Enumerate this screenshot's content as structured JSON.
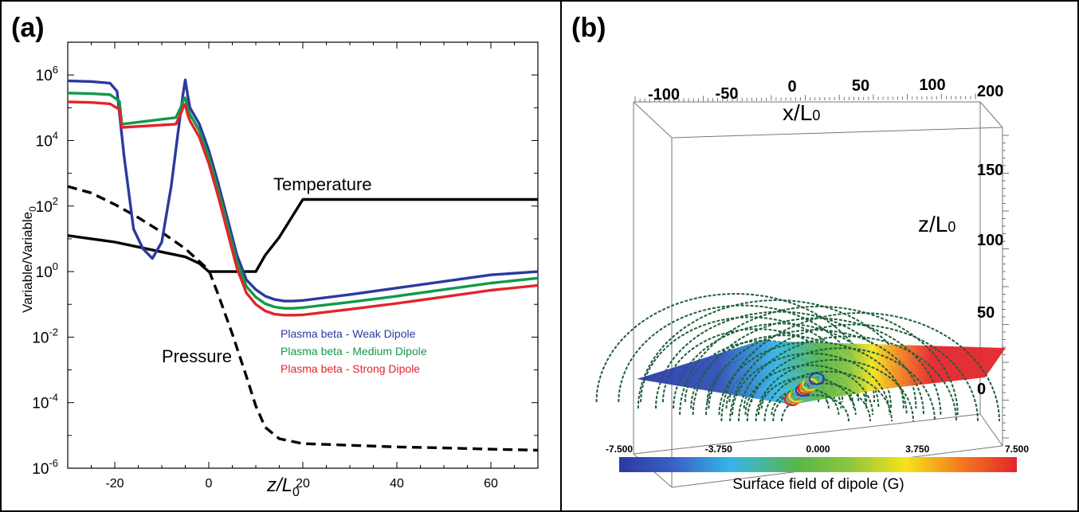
{
  "panels": [
    {
      "label": "(a)"
    },
    {
      "label": "(b)"
    }
  ],
  "chart_data": [
    {
      "type": "line",
      "xlabel": "z/L0",
      "ylabel": "Variable/Variable0",
      "xlim": [
        -30,
        70
      ],
      "ylim_log10": [
        -6,
        7
      ],
      "y_scale": "log",
      "x_ticks": [
        -20,
        0,
        20,
        40,
        60
      ],
      "y_tick_exponents": [
        -6,
        -4,
        -2,
        0,
        2,
        4,
        6
      ],
      "annotations": [
        "Temperature",
        "Pressure"
      ],
      "legend": [
        {
          "name": "Plasma beta - Weak Dipole",
          "color": "#2b3a9e"
        },
        {
          "name": "Plasma beta - Medium Dipole",
          "color": "#119a48"
        },
        {
          "name": "Plasma beta - Strong Dipole",
          "color": "#e3242b"
        }
      ],
      "series": [
        {
          "name": "Temperature",
          "color": "#000000",
          "style": "solid",
          "x": [
            -30,
            -25,
            -20,
            -15,
            -10,
            -5,
            -2,
            0,
            5,
            10,
            12,
            15,
            20,
            30,
            40,
            50,
            60,
            70
          ],
          "log10y": [
            1.1,
            1.0,
            0.9,
            0.75,
            0.6,
            0.45,
            0.25,
            0.0,
            0.0,
            0.0,
            0.5,
            1.05,
            2.2,
            2.2,
            2.2,
            2.2,
            2.2,
            2.2
          ]
        },
        {
          "name": "Pressure",
          "color": "#000000",
          "style": "dashed",
          "x": [
            -30,
            -25,
            -20,
            -15,
            -10,
            -5,
            0,
            2,
            5,
            8,
            10,
            12,
            15,
            20,
            30,
            40,
            50,
            60,
            70
          ],
          "log10y": [
            2.6,
            2.4,
            2.05,
            1.65,
            1.2,
            0.7,
            0.05,
            -0.7,
            -1.9,
            -3.2,
            -4.1,
            -4.75,
            -5.1,
            -5.25,
            -5.3,
            -5.35,
            -5.38,
            -5.42,
            -5.45
          ]
        },
        {
          "name": "Plasma beta - Weak Dipole",
          "color": "#2b3a9e",
          "style": "solid",
          "x": [
            -30,
            -25,
            -21,
            -19.5,
            -18,
            -16,
            -14,
            -12,
            -10,
            -8,
            -6.5,
            -5.5,
            -5,
            -4.5,
            -4,
            -2,
            0,
            2,
            4,
            6,
            8,
            10,
            12,
            14,
            16,
            18,
            20,
            30,
            40,
            50,
            60,
            70
          ],
          "log10y": [
            5.82,
            5.8,
            5.75,
            5.5,
            3.5,
            1.3,
            0.7,
            0.4,
            0.9,
            2.6,
            4.3,
            5.4,
            5.85,
            5.4,
            5.0,
            4.5,
            3.7,
            2.7,
            1.6,
            0.5,
            -0.25,
            -0.55,
            -0.75,
            -0.85,
            -0.9,
            -0.9,
            -0.88,
            -0.7,
            -0.5,
            -0.3,
            -0.1,
            0.0
          ]
        },
        {
          "name": "Plasma beta - Medium Dipole",
          "color": "#119a48",
          "style": "solid",
          "x": [
            -30,
            -25,
            -21,
            -19,
            -18.5,
            -7,
            -6,
            -5.2,
            -5,
            -4.5,
            -4,
            -2,
            0,
            2,
            4,
            6,
            8,
            10,
            12,
            14,
            16,
            18,
            20,
            30,
            40,
            50,
            60,
            70
          ],
          "log10y": [
            5.45,
            5.43,
            5.4,
            5.2,
            4.5,
            4.7,
            5.0,
            5.3,
            5.3,
            5.0,
            4.8,
            4.3,
            3.5,
            2.5,
            1.4,
            0.3,
            -0.45,
            -0.78,
            -0.98,
            -1.08,
            -1.12,
            -1.12,
            -1.1,
            -0.93,
            -0.75,
            -0.55,
            -0.35,
            -0.2
          ]
        },
        {
          "name": "Plasma beta - Strong Dipole",
          "color": "#e3242b",
          "style": "solid",
          "x": [
            -30,
            -25,
            -21,
            -19,
            -18.5,
            -7,
            -6,
            -5.2,
            -5,
            -4.5,
            -4,
            -2,
            0,
            2,
            4,
            6,
            8,
            10,
            12,
            14,
            16,
            18,
            20,
            30,
            40,
            50,
            60,
            70
          ],
          "log10y": [
            5.18,
            5.16,
            5.12,
            4.95,
            4.4,
            4.5,
            4.8,
            5.1,
            5.1,
            4.8,
            4.6,
            4.1,
            3.3,
            2.3,
            1.2,
            0.1,
            -0.65,
            -1.0,
            -1.2,
            -1.3,
            -1.33,
            -1.33,
            -1.32,
            -1.15,
            -0.97,
            -0.77,
            -0.57,
            -0.42
          ]
        }
      ]
    },
    {
      "type": "3d-field",
      "x_axis_label": "x/L0",
      "z_axis_label": "z/L0",
      "x_ticks": [
        -100,
        -50,
        0,
        50,
        100
      ],
      "x_extra_tick": 200,
      "z_ticks": [
        150,
        100,
        50,
        0
      ],
      "colorbar": {
        "label": "Surface field of dipole (G)",
        "tick_labels": [
          "-7.500",
          "-3.750",
          "0.000",
          "3.750",
          "7.500"
        ],
        "colors": [
          "#2b3a9e",
          "#3a62c8",
          "#36b6e8",
          "#5ab54a",
          "#8ec63f",
          "#f6e31c",
          "#f47a20",
          "#e3242b"
        ]
      },
      "field_line_color": "#1f5f3a"
    }
  ]
}
